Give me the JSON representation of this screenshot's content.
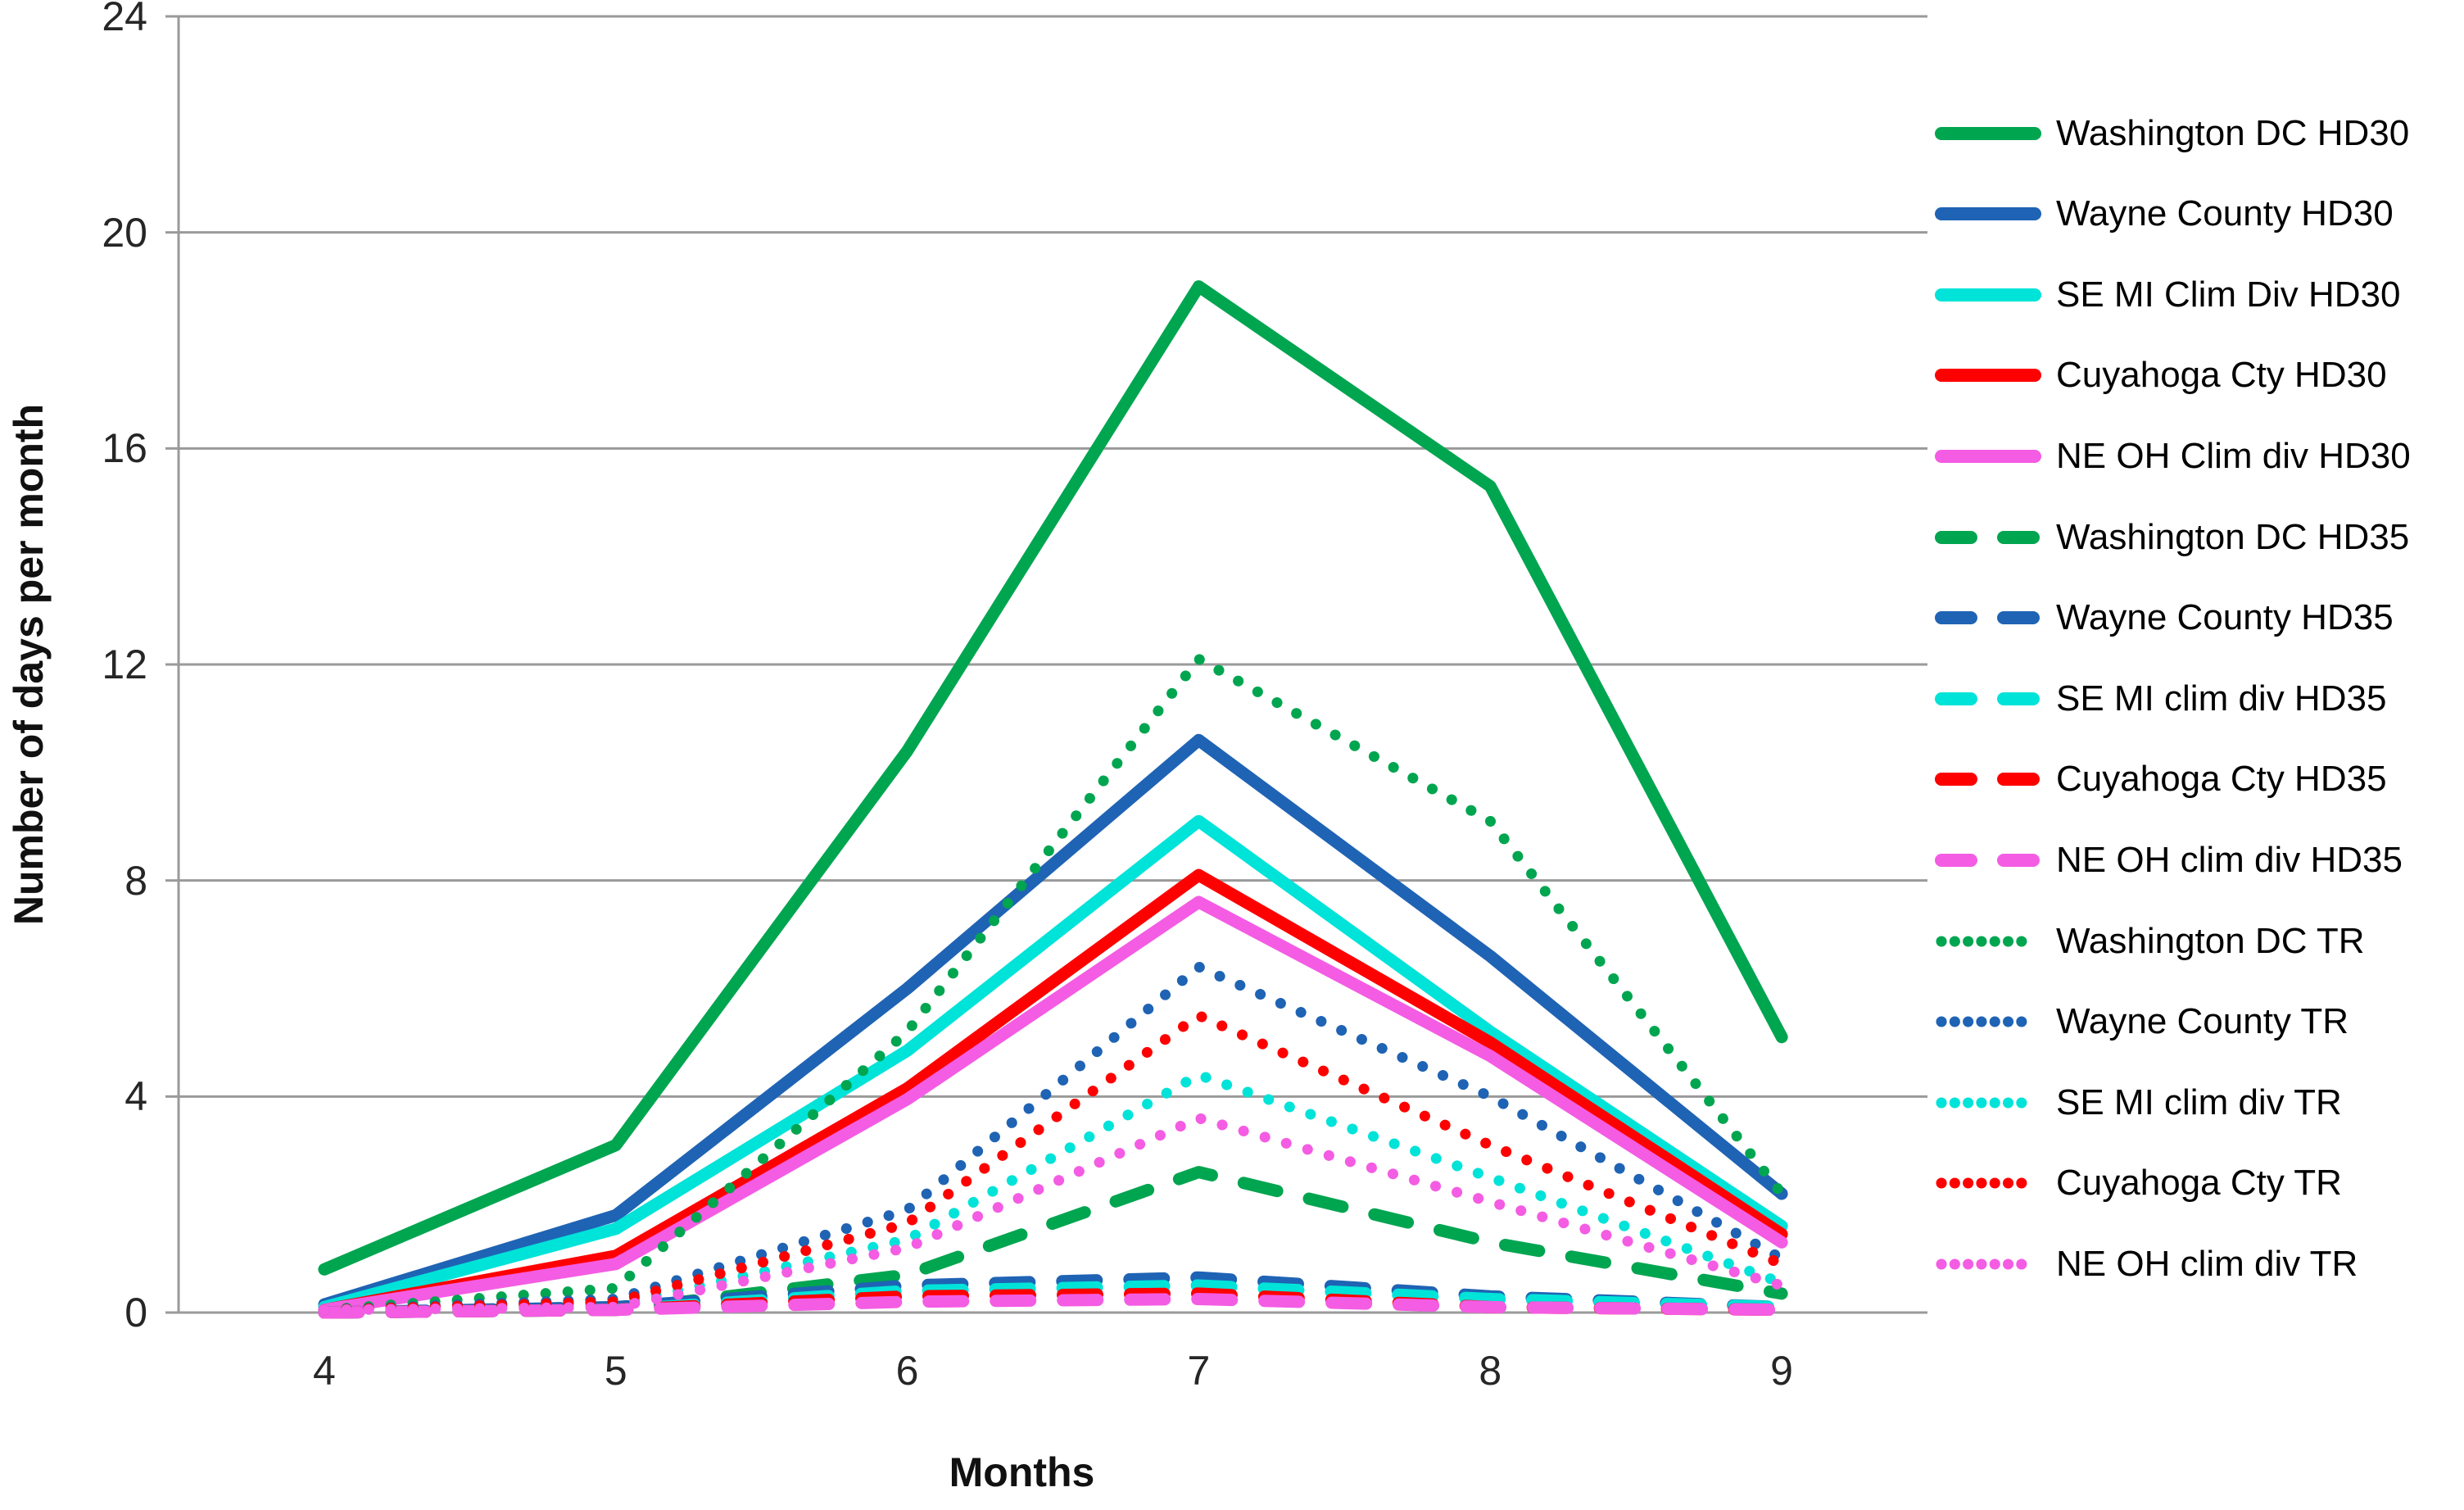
{
  "chart_data": {
    "type": "line",
    "title": "",
    "xlabel": "Months",
    "ylabel": "Number of days per month",
    "x": [
      4,
      5,
      6,
      7,
      8,
      9
    ],
    "xtick_labels": [
      "4",
      "5",
      "6",
      "7",
      "8",
      "9"
    ],
    "ylim": [
      0,
      24
    ],
    "yticks": [
      0,
      4,
      8,
      12,
      16,
      20,
      24
    ],
    "grid": true,
    "grid_color": "#9a9a9a",
    "axis_text_color": "#262626",
    "legend_position": "right",
    "series": [
      {
        "name": "Washington DC HD30",
        "color": "#00a550",
        "style": "solid",
        "values": [
          0.8,
          3.1,
          10.4,
          19.0,
          15.3,
          5.1
        ]
      },
      {
        "name": "Wayne County HD30",
        "color": "#1f63b4",
        "style": "solid",
        "values": [
          0.15,
          1.8,
          6.0,
          10.6,
          6.6,
          2.2
        ]
      },
      {
        "name": "SE MI Clim Div HD30",
        "color": "#00e3d8",
        "style": "solid",
        "values": [
          0.1,
          1.55,
          4.85,
          9.1,
          5.2,
          1.6
        ]
      },
      {
        "name": "Cuyahoga Cty HD30",
        "color": "#fe0000",
        "style": "solid",
        "values": [
          0.05,
          1.05,
          4.15,
          8.1,
          5.0,
          1.45
        ]
      },
      {
        "name": "NE OH Clim div HD30",
        "color": "#f45ce3",
        "style": "solid",
        "values": [
          0.05,
          0.9,
          3.95,
          7.6,
          4.75,
          1.3
        ]
      },
      {
        "name": "Washington DC HD35",
        "color": "#00a550",
        "style": "dashed",
        "values": [
          0.0,
          0.05,
          0.7,
          2.6,
          1.3,
          0.35
        ]
      },
      {
        "name": "Wayne County HD35",
        "color": "#1f63b4",
        "style": "dashed",
        "values": [
          0.0,
          0.1,
          0.5,
          0.65,
          0.3,
          0.1
        ]
      },
      {
        "name": "SE MI clim div HD35",
        "color": "#00e3d8",
        "style": "dashed",
        "values": [
          0.0,
          0.05,
          0.4,
          0.5,
          0.25,
          0.1
        ]
      },
      {
        "name": "Cuyahoga Cty HD35",
        "color": "#fe0000",
        "style": "dashed",
        "values": [
          0.0,
          0.05,
          0.3,
          0.35,
          0.1,
          0.05
        ]
      },
      {
        "name": "NE OH clim div HD35",
        "color": "#f45ce3",
        "style": "dashed",
        "values": [
          0.0,
          0.05,
          0.2,
          0.25,
          0.1,
          0.05
        ]
      },
      {
        "name": "Washington DC TR",
        "color": "#00a550",
        "style": "dotted",
        "values": [
          0.05,
          0.45,
          5.2,
          12.1,
          9.1,
          2.2
        ]
      },
      {
        "name": "Wayne County TR",
        "color": "#1f63b4",
        "style": "dotted",
        "values": [
          0.05,
          0.25,
          1.9,
          6.4,
          4.0,
          1.0
        ]
      },
      {
        "name": "SE MI clim div TR",
        "color": "#00e3d8",
        "style": "dotted",
        "values": [
          0.05,
          0.15,
          1.35,
          4.4,
          2.5,
          0.55
        ]
      },
      {
        "name": "Cuyahoga Cty TR",
        "color": "#fe0000",
        "style": "dotted",
        "values": [
          0.05,
          0.2,
          1.65,
          5.5,
          3.1,
          0.9
        ]
      },
      {
        "name": "NE OH clim div TR",
        "color": "#f45ce3",
        "style": "dotted",
        "values": [
          0.05,
          0.1,
          1.2,
          3.6,
          2.05,
          0.5
        ]
      }
    ]
  }
}
